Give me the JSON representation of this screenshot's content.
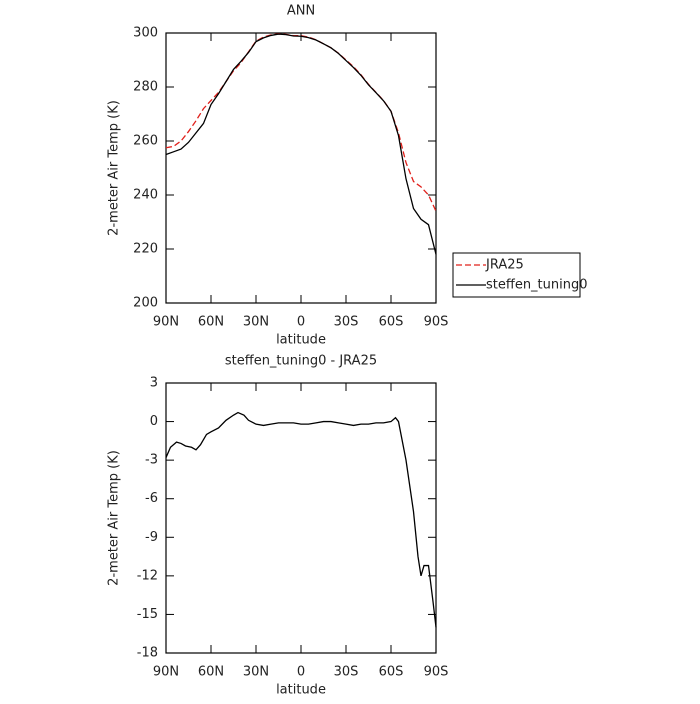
{
  "chart_data": [
    {
      "type": "line",
      "title": "ANN",
      "xlabel": "latitude",
      "ylabel": "2-meter Air Temp (K)",
      "x": [
        90,
        85,
        80,
        75,
        70,
        65,
        60,
        55,
        50,
        45,
        40,
        35,
        30,
        25,
        20,
        15,
        10,
        5,
        0,
        -5,
        -10,
        -15,
        -20,
        -25,
        -30,
        -35,
        -40,
        -45,
        -50,
        -55,
        -60,
        -65,
        -70,
        -75,
        -80,
        -85,
        -90
      ],
      "series": [
        {
          "name": "JRA25",
          "color": "#e0201b",
          "line_style": "dashed",
          "values": [
            257.5,
            258,
            260,
            263.5,
            267.5,
            272,
            275,
            278,
            282,
            286,
            289,
            293,
            297,
            298.5,
            299.3,
            299.7,
            299.5,
            299,
            299,
            298.5,
            297.5,
            296,
            294.5,
            292.5,
            290,
            287.5,
            284.5,
            281,
            278,
            275,
            271,
            263,
            252,
            245,
            243,
            240,
            234
          ]
        },
        {
          "name": "steffen_tuning0",
          "color": "#000000",
          "line_style": "solid",
          "values": [
            255,
            256,
            257,
            259.5,
            263,
            266.5,
            273.5,
            277.5,
            282,
            286.5,
            289.5,
            292.8,
            296.8,
            298.2,
            299.1,
            299.6,
            299.4,
            298.9,
            298.8,
            298.3,
            297.4,
            296,
            294.5,
            292.4,
            289.8,
            287.2,
            284.3,
            280.8,
            277.9,
            274.9,
            271,
            262,
            246,
            235,
            231,
            229,
            218
          ]
        }
      ],
      "xlim": [
        90,
        -90
      ],
      "xticks": [
        {
          "value": 90,
          "label": "90N"
        },
        {
          "value": 60,
          "label": "60N"
        },
        {
          "value": 30,
          "label": "30N"
        },
        0,
        {
          "value": -30,
          "label": "30S"
        },
        {
          "value": -60,
          "label": "60S"
        },
        {
          "value": -90,
          "label": "90S"
        }
      ],
      "ylim": [
        200,
        300
      ],
      "yticks": [
        200,
        220,
        240,
        260,
        280,
        300
      ],
      "legend": "right"
    },
    {
      "type": "line",
      "title": "steffen_tuning0 - JRA25",
      "xlabel": "latitude",
      "ylabel": "2-meter Air Temp (K)",
      "x": [
        90,
        87,
        83,
        80,
        77,
        73,
        70,
        67,
        63,
        60,
        55,
        50,
        45,
        42,
        38,
        35,
        30,
        25,
        20,
        15,
        10,
        5,
        0,
        -5,
        -10,
        -15,
        -20,
        -25,
        -30,
        -35,
        -40,
        -45,
        -50,
        -55,
        -60,
        -63,
        -65,
        -70,
        -75,
        -78,
        -80,
        -82,
        -85,
        -88,
        -90
      ],
      "series": [
        {
          "name": "steffen_tuning0 - JRA25",
          "color": "#000000",
          "line_style": "solid",
          "values": [
            -2.8,
            -2,
            -1.6,
            -1.7,
            -1.9,
            -2,
            -2.2,
            -1.8,
            -1,
            -0.8,
            -0.5,
            0.1,
            0.5,
            0.7,
            0.5,
            0.1,
            -0.2,
            -0.3,
            -0.2,
            -0.1,
            -0.1,
            -0.1,
            -0.2,
            -0.2,
            -0.1,
            0,
            0,
            -0.1,
            -0.2,
            -0.3,
            -0.2,
            -0.2,
            -0.1,
            -0.1,
            0,
            0.3,
            0,
            -3,
            -7,
            -10.5,
            -12,
            -11.2,
            -11.2,
            -14,
            -16
          ]
        }
      ],
      "xlim": [
        90,
        -90
      ],
      "xticks": [
        {
          "value": 90,
          "label": "90N"
        },
        {
          "value": 60,
          "label": "60N"
        },
        {
          "value": 30,
          "label": "30N"
        },
        0,
        {
          "value": -30,
          "label": "30S"
        },
        {
          "value": -60,
          "label": "60S"
        },
        {
          "value": -90,
          "label": "90S"
        }
      ],
      "ylim": [
        -18,
        3
      ],
      "yticks": [
        -18,
        -15,
        -12,
        -9,
        -6,
        -3,
        0,
        3
      ]
    }
  ]
}
